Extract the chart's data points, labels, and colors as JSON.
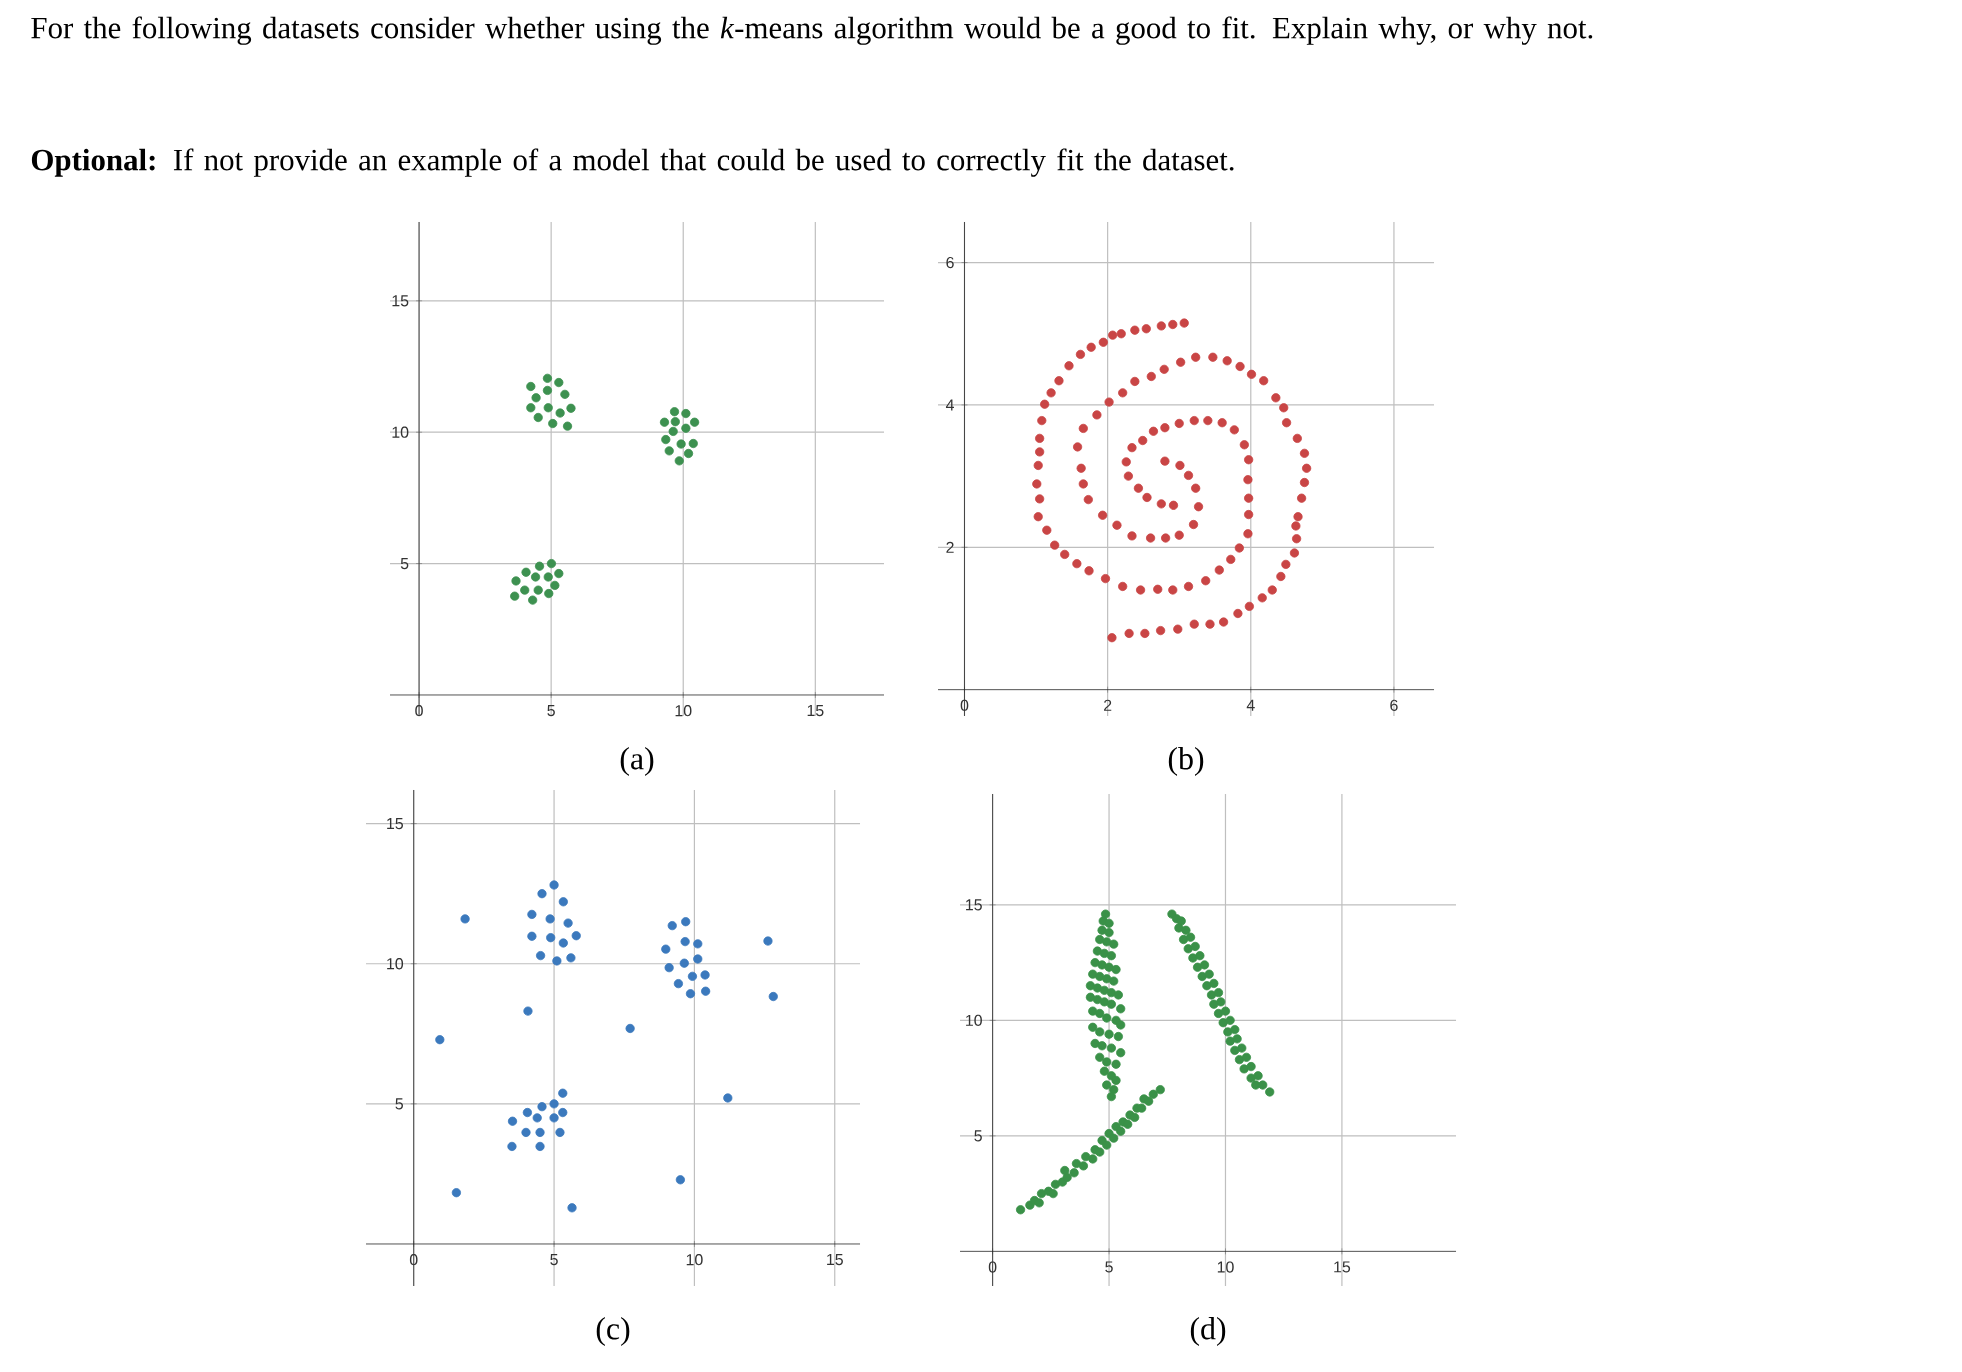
{
  "chart_data": [
    {
      "type": "scatter",
      "xlabel": "(a)",
      "annotations": [
        "For the following datasets consider whether using the *k*-means algorithm would be a good to fit. Explain why, or why not.",
        "**Optional:** If not provide an example of a model that could be used to correctly fit the dataset."
      ],
      "xlim": [
        -1.1,
        17.6
      ],
      "ylim": [
        -0.8,
        18
      ],
      "xticks": [
        0,
        5,
        10,
        15
      ],
      "yticks": [
        5,
        10,
        15
      ],
      "grid": true,
      "marker": "circle",
      "series": [
        {
          "color": "#3d9150",
          "x": [
            4.86,
            5.29,
            4.23,
            4.86,
            5.52,
            4.43,
            4.23,
            4.89,
            5.75,
            5.34,
            4.51,
            5.06,
            5.62,
            9.67,
            10.1,
            9.29,
            9.7,
            10.43,
            10.1,
            9.62,
            9.34,
            9.92,
            10.38,
            9.47,
            10.2,
            9.85,
            5.01,
            4.56,
            4.05,
            5.29,
            3.67,
            4.41,
            4.89,
            5.14,
            4.0,
            4.51,
            4.91,
            3.62,
            4.3
          ],
          "values": [
            12.05,
            11.89,
            11.74,
            11.59,
            11.44,
            11.31,
            10.93,
            10.93,
            10.91,
            10.73,
            10.56,
            10.33,
            10.23,
            10.78,
            10.71,
            10.38,
            10.4,
            10.38,
            10.15,
            10.03,
            9.72,
            9.55,
            9.57,
            9.29,
            9.19,
            8.91,
            5.0,
            4.9,
            4.67,
            4.62,
            4.34,
            4.49,
            4.49,
            4.17,
            3.99,
            3.99,
            3.86,
            3.76,
            3.61
          ]
        }
      ]
    },
    {
      "type": "scatter",
      "xlabel": "(b)",
      "xlim": [
        -0.37,
        6.56
      ],
      "ylim": [
        -0.37,
        6.57
      ],
      "xticks": [
        0,
        2,
        4,
        6
      ],
      "yticks": [
        2,
        4,
        6
      ],
      "grid": true,
      "marker": "circle",
      "series": [
        {
          "color": "#c94545",
          "x": [
            3.07,
            2.91,
            2.75,
            2.54,
            2.38,
            2.19,
            2.07,
            1.94,
            1.77,
            1.62,
            1.46,
            1.32,
            1.21,
            1.12,
            1.08,
            1.05,
            1.05,
            1.03,
            1.01,
            1.05,
            1.03,
            1.15,
            1.26,
            1.4,
            1.57,
            1.74,
            1.97,
            2.21,
            2.46,
            2.7,
            2.91,
            3.13,
            3.37,
            3.56,
            3.72,
            3.84,
            3.96,
            3.97,
            3.97,
            3.96,
            3.97,
            3.91,
            3.77,
            3.6,
            3.4,
            3.21,
            3.0,
            2.8,
            2.64,
            2.49,
            2.34,
            2.26,
            2.29,
            2.43,
            2.55,
            2.75,
            2.92,
            3.27,
            3.23,
            3.13,
            3.01,
            2.8,
            3.2,
            3.0,
            2.81,
            2.6,
            2.34,
            2.13,
            1.93,
            1.73,
            1.66,
            1.63,
            1.58,
            1.66,
            1.85,
            2.02,
            2.21,
            2.38,
            2.61,
            2.79,
            3.02,
            3.23,
            3.47,
            3.67,
            3.85,
            4.01,
            4.18,
            4.35,
            4.46,
            4.5,
            4.65,
            4.75,
            4.78,
            4.75,
            4.71,
            4.66,
            4.63,
            4.64,
            4.61,
            4.49,
            4.42,
            4.3,
            4.16,
            3.98,
            3.82,
            3.62,
            3.43,
            3.21,
            2.98,
            2.74,
            2.52,
            2.3,
            2.06
          ],
          "values": [
            5.15,
            5.13,
            5.11,
            5.07,
            5.05,
            5.0,
            4.98,
            4.88,
            4.81,
            4.71,
            4.55,
            4.34,
            4.17,
            4.01,
            3.78,
            3.53,
            3.34,
            3.15,
            2.89,
            2.68,
            2.43,
            2.24,
            2.03,
            1.9,
            1.77,
            1.67,
            1.56,
            1.45,
            1.4,
            1.41,
            1.4,
            1.45,
            1.53,
            1.68,
            1.83,
            1.99,
            2.19,
            2.46,
            2.69,
            2.95,
            3.23,
            3.44,
            3.65,
            3.75,
            3.78,
            3.78,
            3.74,
            3.68,
            3.63,
            3.5,
            3.4,
            3.2,
            3.0,
            2.83,
            2.7,
            2.61,
            2.59,
            2.57,
            2.83,
            3.01,
            3.15,
            3.21,
            2.32,
            2.17,
            2.13,
            2.13,
            2.16,
            2.31,
            2.45,
            2.67,
            2.89,
            3.11,
            3.41,
            3.67,
            3.86,
            4.04,
            4.17,
            4.33,
            4.4,
            4.5,
            4.6,
            4.67,
            4.67,
            4.62,
            4.54,
            4.43,
            4.34,
            4.1,
            3.96,
            3.75,
            3.53,
            3.32,
            3.11,
            2.91,
            2.69,
            2.43,
            2.3,
            2.12,
            1.92,
            1.76,
            1.59,
            1.4,
            1.29,
            1.17,
            1.07,
            0.95,
            0.92,
            0.92,
            0.85,
            0.83,
            0.79,
            0.79,
            0.73
          ]
        }
      ]
    },
    {
      "type": "scatter",
      "xlabel": "(c)",
      "xlim": [
        -1.7,
        15.9
      ],
      "ylim": [
        -1.5,
        16.2
      ],
      "xticks": [
        0,
        5,
        10,
        15
      ],
      "yticks": [
        5,
        10,
        15
      ],
      "grid": true,
      "marker": "circle",
      "series": [
        {
          "color": "#3b79bd",
          "x": [
            5.0,
            4.57,
            5.33,
            4.21,
            4.86,
            5.5,
            1.83,
            4.21,
            4.88,
            5.79,
            5.33,
            4.52,
            5.1,
            5.6,
            4.07,
            0.93,
            7.71,
            9.21,
            9.69,
            8.98,
            9.67,
            10.12,
            9.1,
            9.64,
            10.12,
            9.43,
            9.93,
            10.38,
            9.86,
            10.4,
            12.62,
            12.81,
            11.19,
            9.5,
            5.64,
            1.52,
            5.31,
            5.0,
            4.57,
            4.05,
            4.4,
            5.0,
            5.31,
            3.52,
            4.0,
            4.5,
            5.21,
            3.5,
            4.5
          ],
          "values": [
            12.81,
            12.5,
            12.21,
            11.76,
            11.6,
            11.45,
            11.6,
            10.98,
            10.93,
            11.0,
            10.74,
            10.29,
            10.1,
            10.21,
            8.31,
            7.29,
            7.69,
            11.36,
            11.5,
            10.52,
            10.79,
            10.71,
            9.86,
            10.02,
            10.17,
            9.29,
            9.55,
            9.6,
            8.93,
            9.02,
            10.81,
            8.83,
            5.21,
            2.29,
            1.29,
            1.83,
            5.38,
            5.0,
            4.9,
            4.69,
            4.5,
            4.5,
            4.69,
            4.38,
            3.98,
            3.98,
            3.98,
            3.48,
            3.48
          ]
        }
      ]
    },
    {
      "type": "scatter",
      "xlabel": "(d)",
      "xlim": [
        -1.4,
        19.9
      ],
      "ylim": [
        -1.5,
        19.8
      ],
      "xticks": [
        0,
        5,
        10,
        15
      ],
      "yticks": [
        5,
        10,
        15
      ],
      "grid": true,
      "marker": "circle",
      "series": [
        {
          "color": "#3a9148",
          "x": [
            4.85,
            4.75,
            5.0,
            4.7,
            5.0,
            4.6,
            4.9,
            5.2,
            4.5,
            4.8,
            5.1,
            4.4,
            4.7,
            5.0,
            5.3,
            4.3,
            4.6,
            4.9,
            5.2,
            4.2,
            4.5,
            4.8,
            5.1,
            5.4,
            4.2,
            4.5,
            4.8,
            5.1,
            5.5,
            4.3,
            4.6,
            4.9,
            5.3,
            5.5,
            4.3,
            4.6,
            5.0,
            5.4,
            4.4,
            4.7,
            5.1,
            5.5,
            4.6,
            4.9,
            5.3,
            4.8,
            5.1,
            5.3,
            4.9,
            5.2,
            5.1,
            7.7,
            7.9,
            8.1,
            8.0,
            8.3,
            8.2,
            8.5,
            8.4,
            8.7,
            8.6,
            8.9,
            8.8,
            9.1,
            9.0,
            9.3,
            9.2,
            9.5,
            9.4,
            9.7,
            9.5,
            9.8,
            9.7,
            10.0,
            9.9,
            10.2,
            10.1,
            10.4,
            10.2,
            10.5,
            10.4,
            10.7,
            10.6,
            10.9,
            10.8,
            11.1,
            11.1,
            11.4,
            11.3,
            11.6,
            11.9,
            1.2,
            1.6,
            1.8,
            2.0,
            2.1,
            2.4,
            2.6,
            2.7,
            3.0,
            3.2,
            3.1,
            3.5,
            3.6,
            3.9,
            4.0,
            4.3,
            4.4,
            4.6,
            4.7,
            4.9,
            5.0,
            5.2,
            5.3,
            5.5,
            5.6,
            5.8,
            5.9,
            6.1,
            6.2,
            6.4,
            6.5,
            6.7,
            6.9,
            7.2
          ],
          "values": [
            14.6,
            14.3,
            14.2,
            13.9,
            13.8,
            13.5,
            13.4,
            13.3,
            13.0,
            12.9,
            12.8,
            12.5,
            12.4,
            12.3,
            12.2,
            12.0,
            11.9,
            11.8,
            11.7,
            11.5,
            11.4,
            11.3,
            11.2,
            11.1,
            11.0,
            10.9,
            10.8,
            10.7,
            10.5,
            10.4,
            10.3,
            10.1,
            10.0,
            9.8,
            9.7,
            9.5,
            9.4,
            9.3,
            9.0,
            8.9,
            8.8,
            8.6,
            8.4,
            8.2,
            8.1,
            7.8,
            7.6,
            7.4,
            7.2,
            7.0,
            6.7,
            14.6,
            14.4,
            14.3,
            14.0,
            13.9,
            13.5,
            13.6,
            13.1,
            13.2,
            12.7,
            12.8,
            12.3,
            12.4,
            11.9,
            12.0,
            11.5,
            11.6,
            11.1,
            11.2,
            10.7,
            10.8,
            10.3,
            10.4,
            9.9,
            10.0,
            9.5,
            9.6,
            9.1,
            9.2,
            8.7,
            8.8,
            8.3,
            8.4,
            7.9,
            8.0,
            7.5,
            7.6,
            7.2,
            7.2,
            6.9,
            1.8,
            2.0,
            2.2,
            2.1,
            2.5,
            2.6,
            2.5,
            2.9,
            3.0,
            3.2,
            3.5,
            3.4,
            3.8,
            3.7,
            4.1,
            4.0,
            4.4,
            4.3,
            4.8,
            4.6,
            5.1,
            4.9,
            5.4,
            5.2,
            5.6,
            5.5,
            5.9,
            5.8,
            6.2,
            6.2,
            6.6,
            6.5,
            6.8,
            7.0
          ]
        }
      ]
    }
  ]
}
